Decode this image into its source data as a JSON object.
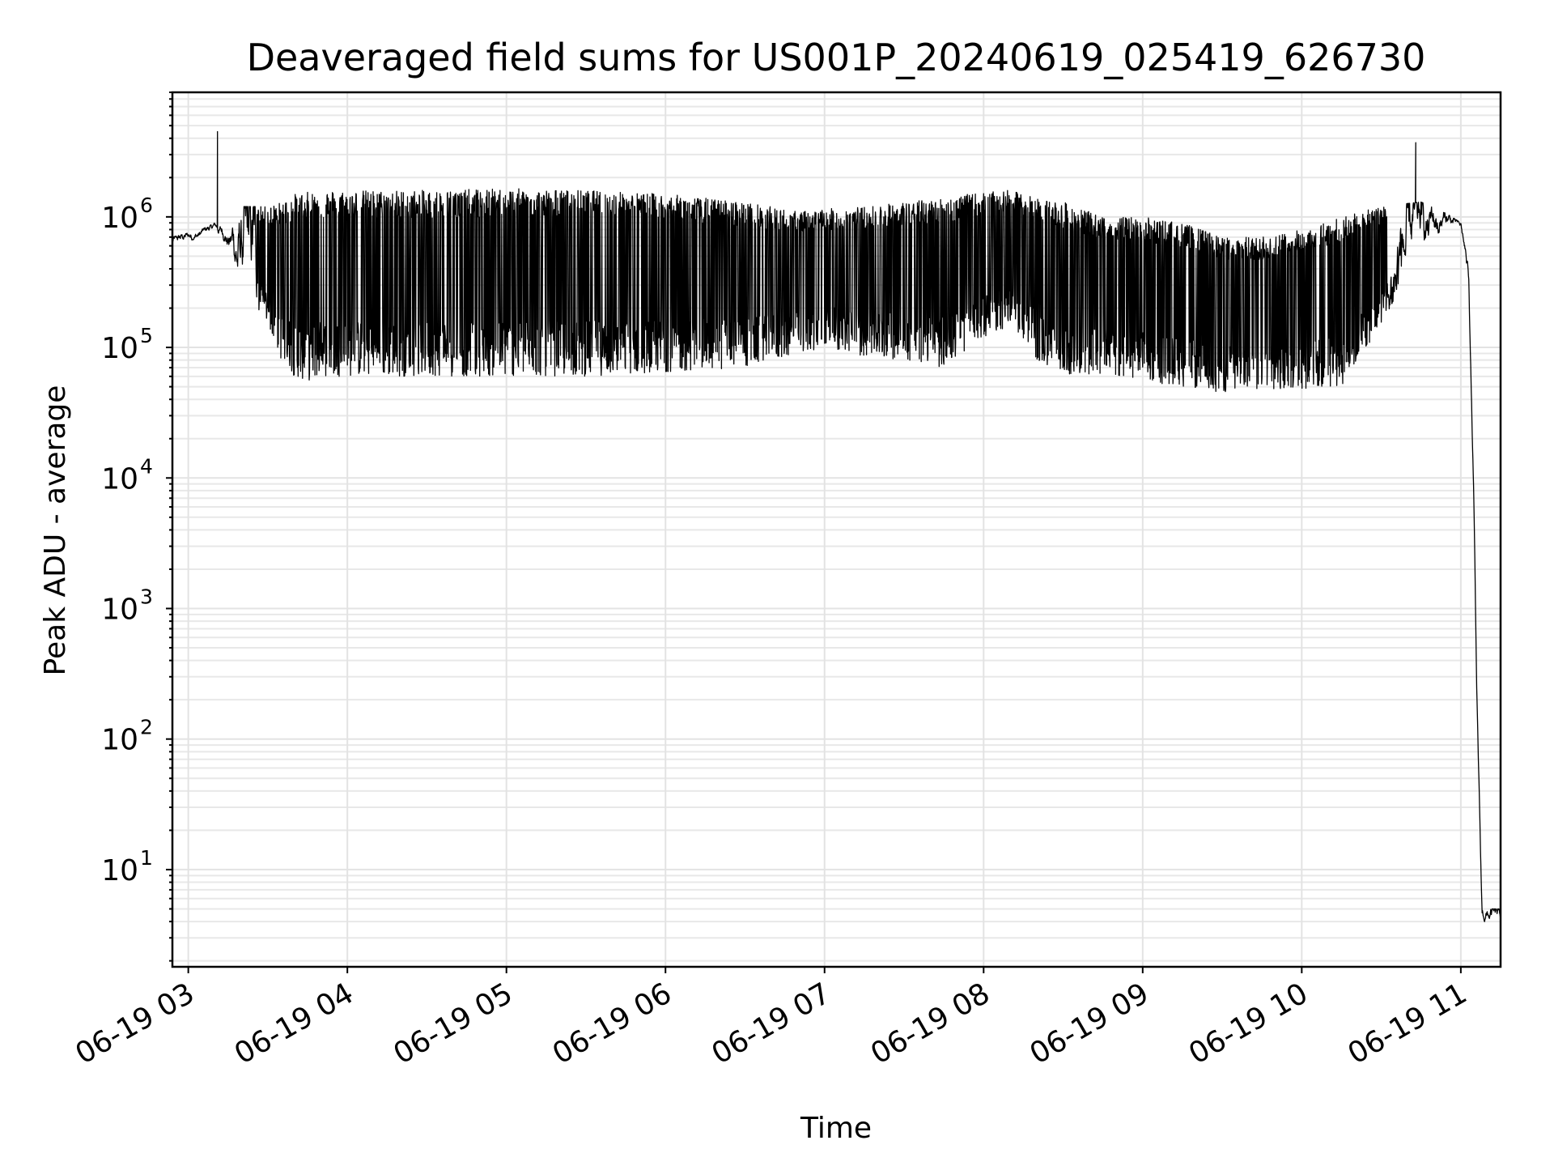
{
  "chart_data": {
    "type": "line",
    "title": "Deaveraged field sums for US001P_20240619_025419_626730",
    "xlabel": "Time",
    "ylabel": "Peak ADU - average",
    "yscale": "log",
    "grid": true,
    "x_ticks": [
      "06-19 03",
      "06-19 04",
      "06-19 05",
      "06-19 06",
      "06-19 07",
      "06-19 08",
      "06-19 09",
      "06-19 10",
      "06-19 11"
    ],
    "xlim": [
      "06-19 02:54",
      "06-19 11:15"
    ],
    "y_ticks": [
      {
        "base": "10",
        "exp": "1",
        "value": 10
      },
      {
        "base": "10",
        "exp": "2",
        "value": 100
      },
      {
        "base": "10",
        "exp": "3",
        "value": 1000
      },
      {
        "base": "10",
        "exp": "4",
        "value": 10000
      },
      {
        "base": "10",
        "exp": "5",
        "value": 100000
      },
      {
        "base": "10",
        "exp": "6",
        "value": 1000000
      }
    ],
    "ylim": [
      1.8,
      9000000
    ],
    "line_color": "#000000",
    "series": [
      {
        "x": [
          "06-19 02:54",
          "06-19 03:05",
          "06-19 03:10",
          "06-19 03:15",
          "06-19 03:20",
          "06-19 03:25",
          "06-19 03:30",
          "06-19 03:35",
          "06-19 03:40",
          "06-19 03:45",
          "06-19 03:50",
          "06-19 04:00",
          "06-19 04:30",
          "06-19 05:00",
          "06-19 05:30",
          "06-19 06:00",
          "06-19 06:30",
          "06-19 06:50",
          "06-19 07:00",
          "06-19 07:15",
          "06-19 07:30",
          "06-19 07:45",
          "06-19 07:55",
          "06-19 08:10",
          "06-19 08:20",
          "06-19 08:30",
          "06-19 08:45",
          "06-19 09:00",
          "06-19 09:15",
          "06-19 09:30",
          "06-19 09:45",
          "06-19 10:00",
          "06-19 10:15",
          "06-19 10:30",
          "06-19 10:45",
          "06-19 10:55",
          "06-19 11:00",
          "06-19 11:03",
          "06-19 11:05",
          "06-19 11:06",
          "06-19 11:08",
          "06-19 11:10",
          "06-19 11:15"
        ],
        "low": [
          600000,
          700000,
          800000,
          600000,
          350000,
          200000,
          150000,
          80000,
          60000,
          55000,
          60000,
          60000,
          60000,
          60000,
          60000,
          65000,
          70000,
          90000,
          100000,
          85000,
          80000,
          70000,
          100000,
          150000,
          80000,
          60000,
          60000,
          55000,
          50000,
          45000,
          48000,
          48000,
          50000,
          150000,
          600000,
          850000,
          800000,
          300000,
          5000,
          200,
          4,
          4,
          4
        ],
        "high": [
          700000,
          800000,
          900000,
          800000,
          1200000,
          1200000,
          1200000,
          1300000,
          1500000,
          1550000,
          1600000,
          1600000,
          1600000,
          1650000,
          1600000,
          1500000,
          1300000,
          1100000,
          1150000,
          1200000,
          1300000,
          1400000,
          1500000,
          1600000,
          1400000,
          1300000,
          1000000,
          1000000,
          900000,
          700000,
          700000,
          800000,
          1000000,
          1200000,
          1300000,
          1050000,
          900000,
          400000,
          6000,
          250,
          5,
          5,
          5
        ],
        "spikes": [
          {
            "x": "06-19 03:11",
            "y": 4500000
          },
          {
            "x": "06-19 10:43",
            "y": 3700000
          }
        ]
      }
    ]
  }
}
